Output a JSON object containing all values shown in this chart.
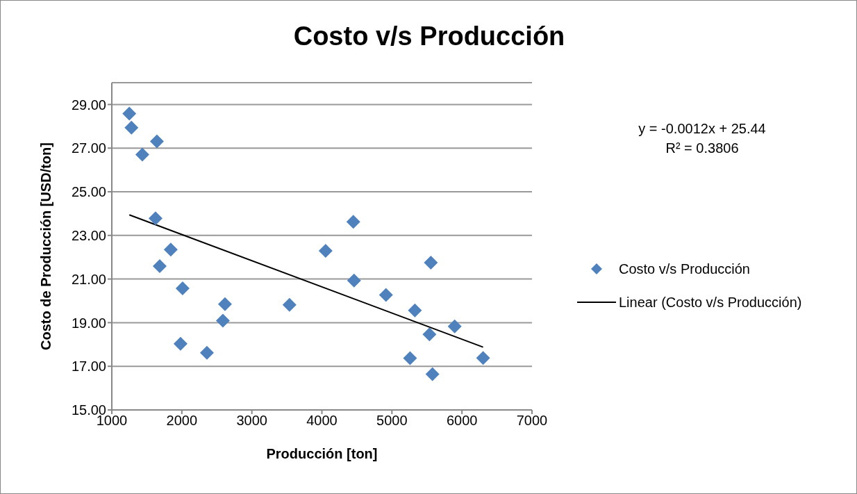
{
  "chart_data": {
    "type": "scatter",
    "title": "Costo v/s Producción",
    "xlabel": "Producción [ton]",
    "ylabel": "Costo de Producción [USD/ton]",
    "xlim": [
      1000,
      7000
    ],
    "xticks": [
      1000,
      2000,
      3000,
      4000,
      5000,
      6000,
      7000
    ],
    "ylim": [
      15,
      30
    ],
    "yticks": [
      {
        "value": 15,
        "label": "15.00"
      },
      {
        "value": 17,
        "label": "17.00"
      },
      {
        "value": 19,
        "label": "19.00"
      },
      {
        "value": 21,
        "label": "21.00"
      },
      {
        "value": 23,
        "label": "23.00"
      },
      {
        "value": 25,
        "label": "25.00"
      },
      {
        "value": 27,
        "label": "27.00"
      },
      {
        "value": 29,
        "label": "29.00"
      }
    ],
    "grid": "y",
    "legend": "right",
    "annotations": [
      "y = -0.0012x + 25.44",
      "R² = 0.3806"
    ],
    "series": [
      {
        "name": "Costo v/s Producción",
        "type": "scatter",
        "marker": "diamond",
        "color": "#4f81bd",
        "x": [
          1250,
          1280,
          1436,
          1644,
          1624,
          1842,
          1684,
          2011,
          1981,
          2358,
          2616,
          2586,
          3537,
          4053,
          4449,
          4459,
          4915,
          5556,
          5328,
          5896,
          5536,
          5259,
          6302,
          5579
        ],
        "values": [
          28.58,
          27.94,
          26.7,
          27.31,
          23.78,
          22.35,
          21.59,
          20.57,
          18.03,
          17.62,
          19.85,
          19.09,
          19.82,
          22.29,
          23.62,
          20.93,
          20.27,
          21.75,
          19.56,
          18.83,
          18.46,
          17.37,
          17.38,
          16.64
        ]
      },
      {
        "name": "Linear (Costo v/s Producción)",
        "type": "line",
        "marker": "none",
        "line_style": "solid",
        "color": "#000000",
        "x": [
          1250,
          6302
        ],
        "values": [
          23.94,
          17.88
        ]
      }
    ]
  }
}
